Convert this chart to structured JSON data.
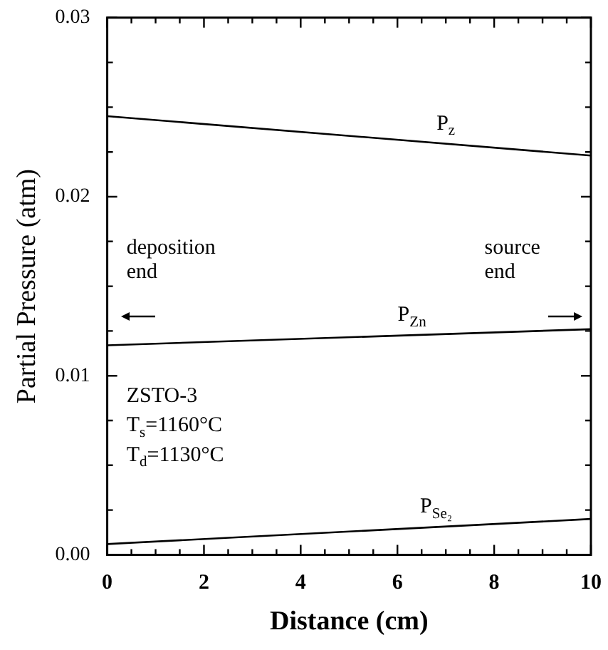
{
  "chart_data": {
    "type": "line",
    "xlabel": "Distance (cm)",
    "ylabel": "Partial Pressure (atm)",
    "x": [
      0,
      10
    ],
    "series": [
      {
        "name": "P$_{z}$",
        "color": "#000000",
        "values": [
          0.0245,
          0.0223
        ]
      },
      {
        "name": "P$_{Zn}$",
        "color": "#000000",
        "values": [
          0.0117,
          0.0126
        ]
      },
      {
        "name": "P$_{Se₂}$",
        "color": "#000000",
        "values": [
          0.0006,
          0.002
        ]
      }
    ],
    "xlim": [
      0,
      10
    ],
    "xticks": [
      0,
      {
        "value": 0.5,
        "label": null
      },
      {
        "value": 1,
        "label": null
      },
      {
        "value": 1.5,
        "label": null
      },
      2,
      {
        "value": 2.5,
        "label": null
      },
      {
        "value": 3,
        "label": null
      },
      {
        "value": 3.5,
        "label": null
      },
      4,
      {
        "value": 4.5,
        "label": null
      },
      {
        "value": 5,
        "label": null
      },
      {
        "value": 5.5,
        "label": null
      },
      6,
      {
        "value": 6.5,
        "label": null
      },
      {
        "value": 7,
        "label": null
      },
      {
        "value": 7.5,
        "label": null
      },
      8,
      {
        "value": 8.5,
        "label": null
      },
      {
        "value": 9,
        "label": null
      },
      {
        "value": 9.5,
        "label": null
      },
      10
    ],
    "ylim": [
      0,
      0.03
    ],
    "yticks": [
      {
        "value": 0,
        "label": "0.00"
      },
      {
        "value": 0.0025,
        "label": null
      },
      {
        "value": 0.005,
        "label": null
      },
      {
        "value": 0.0075,
        "label": null
      },
      0.01,
      {
        "value": 0.0125,
        "label": null
      },
      {
        "value": 0.015,
        "label": null
      },
      {
        "value": 0.0175,
        "label": null
      },
      0.02,
      {
        "value": 0.0225,
        "label": null
      },
      {
        "value": 0.025,
        "label": null
      },
      {
        "value": 0.0275,
        "label": null
      },
      0.03
    ],
    "annotations": [
      "deposition end",
      "source end",
      "ZSTO-3",
      "T$_{s}$=1160°C",
      "T$_{d}$=1130°C"
    ],
    "legend": false,
    "grid": false,
    "marker": "none",
    "line_style": "solid"
  }
}
